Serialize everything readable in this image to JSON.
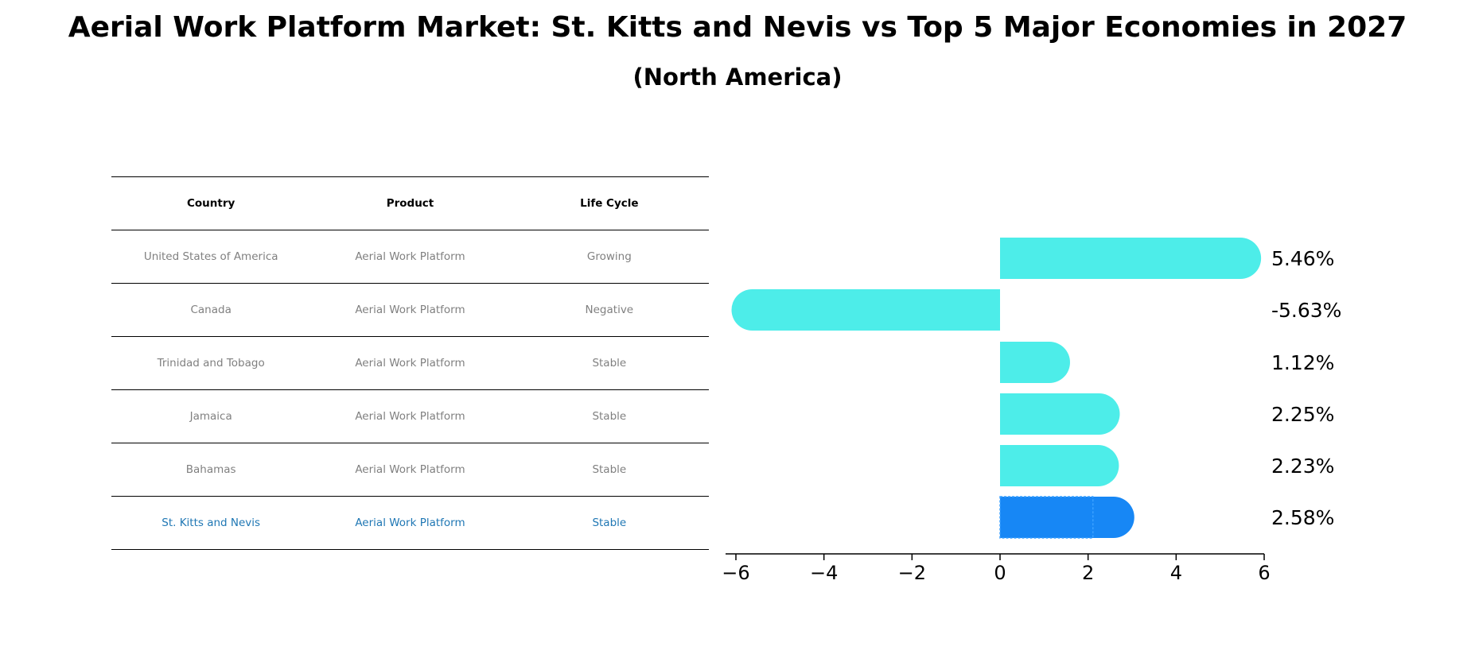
{
  "title": "Aerial Work Platform Market: St. Kitts and Nevis vs Top 5 Major Economies in 2027",
  "subtitle": "(North America)",
  "table": {
    "headers": [
      "Country",
      "Product",
      "Life Cycle"
    ],
    "rows": [
      {
        "country": "United States of America",
        "product": "Aerial Work Platform",
        "life_cycle": "Growing"
      },
      {
        "country": "Canada",
        "product": "Aerial Work Platform",
        "life_cycle": "Negative"
      },
      {
        "country": "Trinidad and Tobago",
        "product": "Aerial Work Platform",
        "life_cycle": "Stable"
      },
      {
        "country": "Jamaica",
        "product": "Aerial Work Platform",
        "life_cycle": "Stable"
      },
      {
        "country": "Bahamas",
        "product": "Aerial Work Platform",
        "life_cycle": "Stable"
      },
      {
        "country": "St. Kitts and Nevis",
        "product": "Aerial Work Platform",
        "life_cycle": "Stable"
      }
    ],
    "highlight_row": 5
  },
  "chart_data": {
    "type": "bar",
    "orientation": "horizontal",
    "categories": [
      "United States of America",
      "Canada",
      "Trinidad and Tobago",
      "Jamaica",
      "Bahamas",
      "St. Kitts and Nevis"
    ],
    "values": [
      5.46,
      -5.63,
      1.12,
      2.25,
      2.23,
      2.58
    ],
    "value_labels": [
      "5.46%",
      "-5.63%",
      "1.12%",
      "2.25%",
      "2.23%",
      "2.58%"
    ],
    "xlim": [
      -6,
      6
    ],
    "xticks": [
      -6,
      -4,
      -2,
      0,
      2,
      4,
      6
    ],
    "xtick_labels": [
      "−6",
      "−4",
      "−2",
      "0",
      "2",
      "4",
      "6"
    ],
    "grid": false,
    "colors": {
      "default": "#4dede9",
      "highlight": "#1787f5",
      "highlight_edge": "#3aa0ff"
    }
  }
}
